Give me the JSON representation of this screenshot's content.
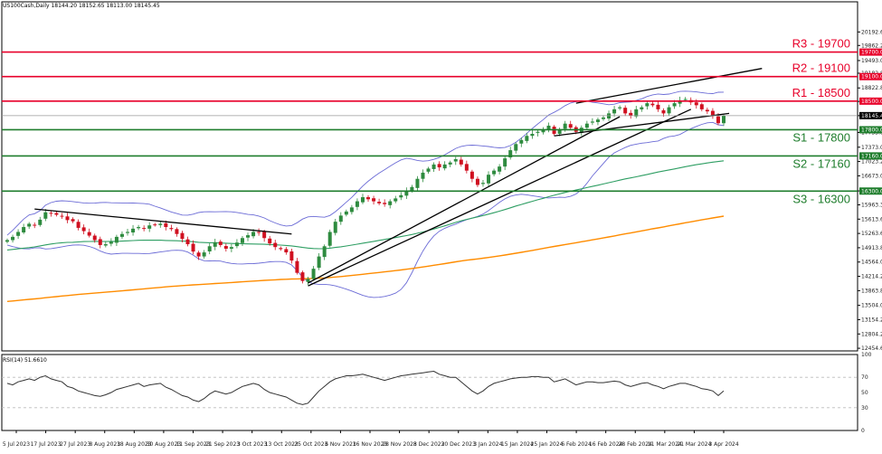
{
  "header": {
    "symbol_line": "US100Cash,Daily  18144.20 18152.65 18113.00 18145.45",
    "rsi_line": "RSI(14) 51.6610"
  },
  "colors": {
    "bullish": "#2e8b3f",
    "bearish": "#d01020",
    "ma_fast": "#2e9e63",
    "ma_slow": "#ff8c00",
    "bollinger": "#6b6bd6",
    "trendline": "#000000",
    "resistance": "#e8002a",
    "support": "#1e7d2c",
    "rsi": "#333333"
  },
  "chart_data": [
    {
      "type": "candlestick",
      "title": "US100Cash,Daily",
      "ylim": [
        12390,
        20930
      ],
      "y_tick_labels": [
        "20192.60",
        "19862.20",
        "19493.00",
        "19182.80",
        "18822.80",
        "18493.00",
        "18145.45",
        "17733.80",
        "17373.00",
        "17023.20",
        "16673.00",
        "16303.80",
        "15963.30",
        "15613.60",
        "15263.60",
        "14913.80",
        "14564.00",
        "14214.20",
        "13863.80",
        "13504.00",
        "13154.20",
        "12804.20",
        "12454.60"
      ],
      "x_tick_labels": [
        "5 Jul 2023",
        "17 Jul 2023",
        "27 Jul 2023",
        "8 Aug 2023",
        "18 Aug 2023",
        "30 Aug 2023",
        "11 Sep 2023",
        "21 Sep 2023",
        "3 Oct 2023",
        "13 Oct 2023",
        "25 Oct 2023",
        "6 Nov 2023",
        "16 Nov 2023",
        "28 Nov 2023",
        "8 Dec 2023",
        "20 Dec 2023",
        "3 Jan 2024",
        "15 Jan 2024",
        "25 Jan 2024",
        "6 Feb 2024",
        "16 Feb 2024",
        "28 Feb 2024",
        "11 Mar 2024",
        "21 Mar 2024",
        "3 Apr 2024"
      ],
      "closes": [
        15100,
        15180,
        15300,
        15420,
        15500,
        15470,
        15600,
        15780,
        15750,
        15720,
        15680,
        15590,
        15560,
        15400,
        15320,
        15210,
        15100,
        14980,
        15000,
        15060,
        15180,
        15250,
        15300,
        15380,
        15420,
        15380,
        15460,
        15480,
        15500,
        15420,
        15370,
        15250,
        15130,
        15000,
        14820,
        14700,
        14800,
        14950,
        15050,
        14980,
        14890,
        14930,
        15040,
        15150,
        15220,
        15300,
        15280,
        15150,
        15020,
        14930,
        14880,
        14800,
        14600,
        14300,
        14100,
        14150,
        14400,
        14700,
        14950,
        15300,
        15550,
        15700,
        15800,
        15900,
        16050,
        16150,
        16100,
        16050,
        16000,
        15980,
        16050,
        16120,
        16200,
        16300,
        16400,
        16600,
        16750,
        16850,
        16950,
        16880,
        16950,
        17000,
        17080,
        16950,
        16800,
        16600,
        16450,
        16500,
        16700,
        16800,
        16900,
        17100,
        17300,
        17450,
        17550,
        17650,
        17700,
        17750,
        17800,
        17900,
        17700,
        17800,
        17950,
        17850,
        17750,
        17850,
        17950,
        18000,
        18050,
        18100,
        18200,
        18300,
        18350,
        18200,
        18150,
        18300,
        18350,
        18450,
        18400,
        18300,
        18200,
        18350,
        18450,
        18520,
        18550,
        18470,
        18400,
        18300,
        18250,
        18150,
        17960,
        18145
      ],
      "series": [
        {
          "name": "MA50",
          "values": [
            14860,
            14873,
            14887,
            14903,
            14917,
            14935,
            14959,
            14984,
            15005,
            15022,
            15037,
            15044,
            15048,
            15056,
            15064,
            15067,
            15069,
            15067,
            15067,
            15069,
            15070,
            15076,
            15082,
            15090,
            15095,
            15097,
            15100,
            15099,
            15097,
            15092,
            15088,
            15084,
            15079,
            15071,
            15061,
            15048,
            15040,
            15036,
            15034,
            15030,
            15024,
            15019,
            15015,
            15012,
            15008,
            15006,
            15003,
            14998,
            14992,
            14986,
            14979,
            14970,
            14959,
            14942,
            14922,
            14905,
            14894,
            14890,
            14893,
            14904,
            14920,
            14937,
            14957,
            14978,
            15000,
            15025,
            15048,
            15070,
            15093,
            15115,
            15139,
            15162,
            15186,
            15211,
            15238,
            15268,
            15300,
            15334,
            15372,
            15409,
            15449,
            15490,
            15533,
            15571,
            15606,
            15638,
            15669,
            15701,
            15736,
            15771,
            15808,
            15848,
            15891,
            15934,
            15973,
            16011,
            16049,
            16087,
            16123,
            16163,
            16197,
            16231,
            16266,
            16297,
            16325,
            16355,
            16385,
            16415,
            16444,
            16474,
            16505,
            16536,
            16568,
            16597,
            16622,
            16650,
            16677,
            16707,
            16736,
            16766,
            16791,
            16816,
            16842,
            16869,
            16897,
            16921,
            16945,
            16966,
            16987,
            17007,
            17022,
            17040
          ]
        },
        {
          "name": "MA200",
          "values": [
            13600,
            13612,
            13624,
            13637,
            13650,
            13663,
            13676,
            13690,
            13704,
            13718,
            13732,
            13745,
            13758,
            13770,
            13782,
            13793,
            13804,
            13815,
            13826,
            13837,
            13848,
            13860,
            13872,
            13884,
            13896,
            13908,
            13920,
            13932,
            13944,
            13956,
            13967,
            13977,
            13987,
            13996,
            14004,
            14012,
            14020,
            14029,
            14038,
            14046,
            14054,
            14062,
            14071,
            14080,
            14089,
            14098,
            14107,
            14115,
            14123,
            14130,
            14137,
            14143,
            14148,
            14152,
            14155,
            14158,
            14163,
            14169,
            14176,
            14186,
            14197,
            14209,
            14222,
            14235,
            14250,
            14265,
            14280,
            14295,
            14309,
            14324,
            14339,
            14355,
            14371,
            14388,
            14405,
            14424,
            14443,
            14464,
            14485,
            14505,
            14526,
            14547,
            14569,
            14589,
            14608,
            14625,
            14641,
            14658,
            14676,
            14695,
            14715,
            14735,
            14757,
            14779,
            14802,
            14826,
            14849,
            14873,
            14897,
            14922,
            14945,
            14968,
            14992,
            15015,
            15037,
            15060,
            15083,
            15106,
            15130,
            15154,
            15178,
            15203,
            15228,
            15252,
            15276,
            15301,
            15326,
            15351,
            15376,
            15400,
            15424,
            15449,
            15474,
            15499,
            15524,
            15548,
            15572,
            15596,
            15619,
            15642,
            15664,
            15687
          ]
        }
      ],
      "levels": [
        {
          "name": "R3",
          "label": "R3 - 19700",
          "tag": "19700.00",
          "value": 19700,
          "kind": "resistance"
        },
        {
          "name": "R2",
          "label": "R2 - 19100",
          "tag": "19100.00",
          "value": 19100,
          "kind": "resistance"
        },
        {
          "name": "R1",
          "label": "R1 - 18500",
          "tag": "18500.00",
          "value": 18500,
          "kind": "resistance"
        },
        {
          "name": "S1",
          "label": "S1 - 17800",
          "tag": "17800.00",
          "value": 17800,
          "kind": "support"
        },
        {
          "name": "S2",
          "label": "S2 - 17160",
          "tag": "17160.00",
          "value": 17160,
          "kind": "support"
        },
        {
          "name": "S3",
          "label": "S3 - 16300",
          "tag": "16300.00",
          "value": 16300,
          "kind": "support"
        }
      ],
      "current_price": {
        "value": 18145.45,
        "tag": "18145.45"
      },
      "trendlines": [
        {
          "name": "downtrend-summer",
          "x1": 5,
          "y1": 15860,
          "x2": 52,
          "y2": 15250
        },
        {
          "name": "uptrend-main",
          "x1": 55,
          "y1": 14050,
          "x2": 112,
          "y2": 18120
        },
        {
          "name": "uptrend-secondary",
          "x1": 55,
          "y1": 13980,
          "x2": 125,
          "y2": 18300
        },
        {
          "name": "channel-upper",
          "x1": 104,
          "y1": 18450,
          "x2": 138,
          "y2": 19300
        },
        {
          "name": "channel-lower",
          "x1": 100,
          "y1": 17650,
          "x2": 132,
          "y2": 18200
        }
      ],
      "grid": false,
      "legend": "none"
    },
    {
      "type": "line",
      "title": "RSI(14) 51.6610",
      "ylim": [
        0,
        100
      ],
      "y_tick_labels": [
        "100",
        "70",
        "50",
        "30",
        "0"
      ],
      "levels": [
        70,
        30
      ],
      "values": [
        62,
        60,
        64,
        66,
        68,
        66,
        70,
        72,
        68,
        66,
        64,
        58,
        56,
        52,
        50,
        48,
        46,
        45,
        47,
        50,
        54,
        56,
        58,
        60,
        62,
        58,
        60,
        61,
        62,
        57,
        54,
        50,
        46,
        44,
        40,
        38,
        42,
        48,
        52,
        50,
        48,
        50,
        54,
        58,
        60,
        62,
        60,
        54,
        50,
        48,
        46,
        44,
        40,
        36,
        34,
        36,
        44,
        52,
        58,
        64,
        68,
        70,
        72,
        72,
        73,
        74,
        72,
        70,
        68,
        66,
        68,
        70,
        72,
        73,
        74,
        75,
        76,
        77,
        78,
        74,
        72,
        70,
        70,
        64,
        58,
        52,
        48,
        52,
        58,
        62,
        64,
        66,
        68,
        69,
        70,
        70,
        71,
        71,
        70,
        70,
        64,
        66,
        68,
        64,
        60,
        62,
        64,
        64,
        63,
        63,
        64,
        65,
        64,
        60,
        58,
        60,
        62,
        63,
        60,
        58,
        55,
        58,
        60,
        62,
        62,
        60,
        58,
        55,
        54,
        52,
        46,
        52
      ]
    }
  ]
}
